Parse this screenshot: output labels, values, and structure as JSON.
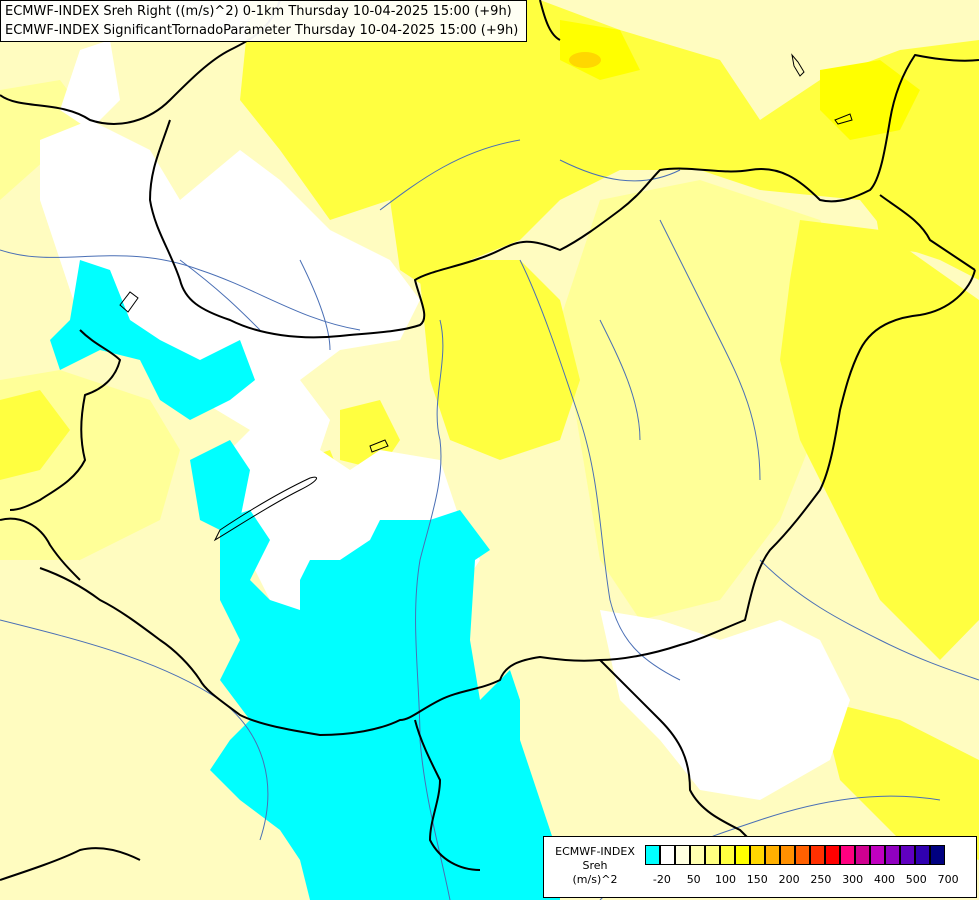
{
  "title": {
    "line1": "ECMWF-INDEX Sreh Right ((m/s)^2) 0-1km Thursday 10-04-2025 15:00 (+9h)",
    "line2": "ECMWF-INDEX SignificantTornadoParameter Thursday 10-04-2025 15:00 (+9h)"
  },
  "legend": {
    "caption_line1": "ECMWF-INDEX",
    "caption_line2": "Sreh",
    "caption_line3": "(m/s)^2",
    "colors": [
      "#00ffff",
      "#ffffff",
      "#ffffe0",
      "#ffffb0",
      "#ffff80",
      "#ffff40",
      "#ffff00",
      "#ffd700",
      "#ffb000",
      "#ff9000",
      "#ff6000",
      "#ff3000",
      "#ff0000",
      "#ff0080",
      "#d00090",
      "#c000c0",
      "#9000c0",
      "#6000c0",
      "#3000b0",
      "#000080"
    ],
    "tick_labels": [
      "-20",
      "50",
      "100",
      "150",
      "200",
      "250",
      "300",
      "400",
      "500",
      "700"
    ]
  },
  "map": {
    "colors": {
      "background": "#fffcc0",
      "pale_yellow": "#ffff98",
      "yellow": "#ffff40",
      "bright_yellow": "#ffff00",
      "orange": "#ffd700",
      "white": "#ffffff",
      "cyan": "#00ffff",
      "border": "#000000",
      "river": "#4a6fb5"
    }
  }
}
